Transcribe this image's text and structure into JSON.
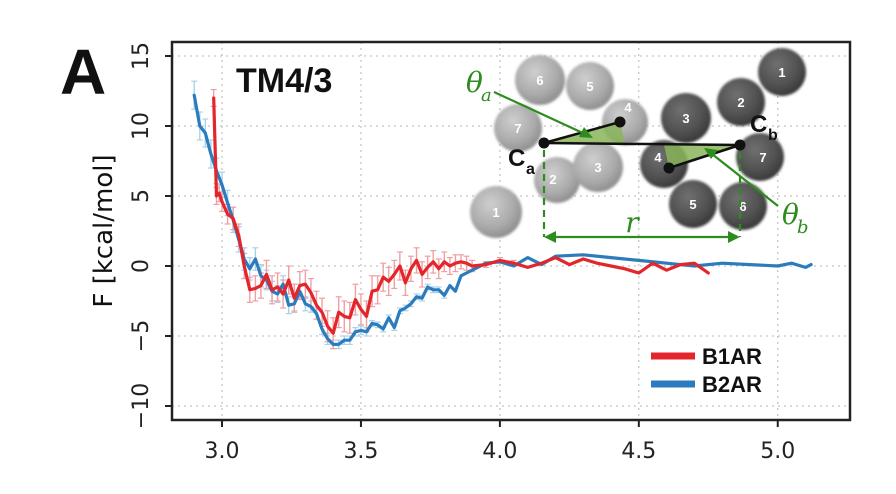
{
  "panel": {
    "letter": "A",
    "title": "TM4/3"
  },
  "colors": {
    "b1ar": "#e3262b",
    "b1ar_err": "#f0a0a3",
    "b2ar": "#2b7bbd",
    "b2ar_err": "#a7d3ea",
    "angle_green": "#2e8b1e",
    "frame": "#222222"
  },
  "chart_data": {
    "type": "line",
    "title": "TM4/3",
    "xlabel": "",
    "ylabel": "F [kcal/mol]",
    "xlim": [
      2.82,
      5.26
    ],
    "ylim": [
      -11.0,
      16.0
    ],
    "xticks": [
      3.0,
      3.5,
      4.0,
      4.5,
      5.0
    ],
    "xtick_labels": [
      "3.0",
      "3.5",
      "4.0",
      "4.5",
      "5.0"
    ],
    "yticks": [
      15,
      10,
      5,
      0,
      -5,
      -10
    ],
    "ytick_labels": [
      "15",
      "10",
      "5",
      "0",
      "−5",
      "−10"
    ],
    "grid": true,
    "legend_position": "bottom-right",
    "series": [
      {
        "name": "B1AR",
        "color": "#e3262b",
        "x": [
          2.97,
          2.98,
          2.99,
          3.0,
          3.02,
          3.04,
          3.06,
          3.08,
          3.1,
          3.12,
          3.14,
          3.16,
          3.18,
          3.2,
          3.22,
          3.24,
          3.26,
          3.28,
          3.3,
          3.32,
          3.34,
          3.36,
          3.38,
          3.4,
          3.42,
          3.44,
          3.46,
          3.48,
          3.5,
          3.52,
          3.54,
          3.56,
          3.58,
          3.6,
          3.62,
          3.64,
          3.66,
          3.68,
          3.7,
          3.72,
          3.74,
          3.76,
          3.78,
          3.8,
          3.82,
          3.84,
          3.86,
          3.88,
          3.9,
          3.95,
          4.0,
          4.05,
          4.1,
          4.15,
          4.2,
          4.25,
          4.3,
          4.35,
          4.4,
          4.45,
          4.5,
          4.55,
          4.6,
          4.65,
          4.7,
          4.75
        ],
        "y": [
          12.0,
          5.0,
          5.2,
          4.6,
          3.7,
          3.4,
          2.2,
          0.0,
          -1.7,
          -1.6,
          -1.4,
          -0.6,
          -1.7,
          -1.5,
          -2.0,
          -1.0,
          -2.3,
          -1.4,
          -1.3,
          -1.9,
          -2.8,
          -3.3,
          -4.3,
          -4.8,
          -3.3,
          -3.6,
          -3.7,
          -2.4,
          -3.1,
          -3.6,
          -1.8,
          -1.7,
          -0.8,
          -1.1,
          -0.6,
          0.0,
          -1.2,
          -0.2,
          0.4,
          -0.6,
          -0.1,
          0.3,
          -0.2,
          0.3,
          0.0,
          0.2,
          0.3,
          0.2,
          0.0,
          0.1,
          0.4,
          0.2,
          -0.1,
          0.2,
          0.6,
          0.1,
          0.5,
          0.2,
          0.0,
          -0.2,
          -0.5,
          0.2,
          -0.3,
          0.1,
          0.2,
          -0.5
        ],
        "error": [
          0.6,
          0.6,
          0.6,
          0.7,
          0.7,
          0.8,
          0.8,
          0.9,
          0.9,
          0.9,
          0.9,
          1.0,
          1.0,
          1.0,
          1.0,
          1.0,
          1.0,
          1.0,
          1.0,
          1.0,
          1.0,
          1.0,
          1.1,
          1.1,
          1.1,
          1.1,
          1.1,
          1.1,
          1.1,
          1.1,
          1.1,
          1.0,
          1.0,
          1.0,
          1.0,
          1.0,
          0.9,
          0.9,
          0.9,
          0.9,
          0.8,
          0.8,
          0.7,
          0.7,
          0.6,
          0.6,
          0.5,
          0.5,
          0.4,
          0.2,
          0.2,
          0.2,
          0.1,
          0.1,
          0.1,
          0.1,
          0.1,
          0.1,
          0.1,
          0.1,
          0.1,
          0.1,
          0.1,
          0.1,
          0.1,
          0.1
        ]
      },
      {
        "name": "B2AR",
        "color": "#2b7bbd",
        "x": [
          2.9,
          2.92,
          2.94,
          2.96,
          2.98,
          3.0,
          3.02,
          3.04,
          3.06,
          3.08,
          3.1,
          3.12,
          3.14,
          3.16,
          3.18,
          3.2,
          3.22,
          3.24,
          3.26,
          3.28,
          3.3,
          3.32,
          3.34,
          3.36,
          3.38,
          3.4,
          3.42,
          3.44,
          3.46,
          3.48,
          3.5,
          3.52,
          3.54,
          3.56,
          3.58,
          3.6,
          3.62,
          3.64,
          3.66,
          3.68,
          3.7,
          3.72,
          3.74,
          3.76,
          3.78,
          3.8,
          3.82,
          3.84,
          3.86,
          3.88,
          3.9,
          3.95,
          4.0,
          4.05,
          4.1,
          4.15,
          4.2,
          4.3,
          4.4,
          4.5,
          4.6,
          4.7,
          4.8,
          4.9,
          5.0,
          5.05,
          5.1,
          5.12
        ],
        "y": [
          12.2,
          10.0,
          9.5,
          8.0,
          6.8,
          5.8,
          4.5,
          3.3,
          1.9,
          0.5,
          -0.2,
          0.5,
          -0.7,
          -1.0,
          -1.8,
          -2.0,
          -1.3,
          -2.8,
          -2.7,
          -1.8,
          -2.7,
          -2.9,
          -3.4,
          -4.5,
          -5.2,
          -5.6,
          -5.6,
          -5.3,
          -5.3,
          -4.7,
          -4.6,
          -4.7,
          -4.1,
          -4.2,
          -4.5,
          -3.7,
          -4.4,
          -3.2,
          -3.0,
          -2.7,
          -2.2,
          -2.3,
          -1.5,
          -1.7,
          -1.7,
          -2.1,
          -1.4,
          -1.8,
          -0.7,
          -0.5,
          -0.3,
          0.2,
          0.3,
          0.0,
          0.6,
          0.1,
          0.7,
          0.8,
          0.6,
          0.4,
          0.2,
          0.0,
          0.2,
          0.1,
          0.0,
          0.2,
          -0.1,
          0.1
        ],
        "error": [
          1.0,
          1.0,
          1.0,
          1.0,
          0.9,
          0.9,
          0.9,
          0.9,
          0.9,
          0.8,
          0.8,
          0.8,
          0.8,
          0.7,
          0.7,
          0.6,
          0.6,
          0.6,
          0.5,
          0.5,
          0.5,
          0.4,
          0.4,
          0.4,
          0.4,
          0.3,
          0.3,
          0.3,
          0.3,
          0.3,
          0.3,
          0.3,
          0.2,
          0.2,
          0.2,
          0.2,
          0.2,
          0.2,
          0.2,
          0.2,
          0.2,
          0.2,
          0.2,
          0.2,
          0.2,
          0.2,
          0.1,
          0.1,
          0.1,
          0.1,
          0.1,
          0.1,
          0.1,
          0.1,
          0.1,
          0.1,
          0.1,
          0.1,
          0.1,
          0.1,
          0.1,
          0.1,
          0.1,
          0.1,
          0.1,
          0.1,
          0.1,
          0.1
        ]
      }
    ]
  },
  "inset": {
    "angle_a": "θ",
    "angle_a_sub": "a",
    "angle_b": "θ",
    "angle_b_sub": "b",
    "c_a": "C",
    "c_a_sub": "a",
    "c_b": "C",
    "c_b_sub": "b",
    "distance": "r",
    "left_helices": [
      "6",
      "5",
      "7",
      "4",
      "2",
      "3",
      "1"
    ],
    "right_helices": [
      "1",
      "2",
      "3",
      "4",
      "7",
      "5",
      "6"
    ]
  }
}
